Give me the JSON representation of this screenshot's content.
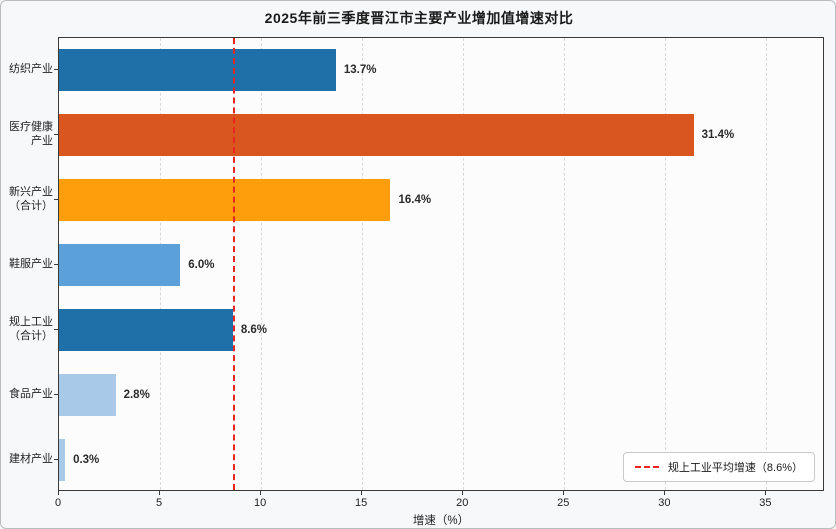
{
  "chart_data": {
    "type": "bar",
    "orientation": "horizontal",
    "title": "2025年前三季度晋江市主要产业增加值增速对比",
    "xlabel": "增速（%）",
    "categories": [
      "纺织产业",
      "医疗健康\n产业",
      "新兴产业\n（合计）",
      "鞋服产业",
      "规上工业\n（合计）",
      "食品产业",
      "建材产业"
    ],
    "values": [
      13.7,
      31.4,
      16.4,
      6.0,
      8.6,
      2.8,
      0.3
    ],
    "value_labels": [
      "13.7%",
      "31.4%",
      "16.4%",
      "6.0%",
      "8.6%",
      "2.8%",
      "0.3%"
    ],
    "bar_colors": [
      "#1f6fa8",
      "#d9561f",
      "#ff9e0d",
      "#5ba0d8",
      "#1f6fa8",
      "#a9c9e8",
      "#a9c9e8"
    ],
    "xlim": [
      0,
      37.9
    ],
    "xticks": [
      0,
      5,
      10,
      15,
      20,
      25,
      30,
      35
    ],
    "grid": {
      "axis": "x",
      "style": "dashed",
      "color": "#d9d9d9"
    },
    "reference_line": {
      "value": 8.6,
      "color": "#e8261f",
      "style": "dashed"
    },
    "legend": {
      "label": "规上工业平均增速（8.6%）",
      "position": "lower-right",
      "line_color": "#e8261f"
    }
  }
}
